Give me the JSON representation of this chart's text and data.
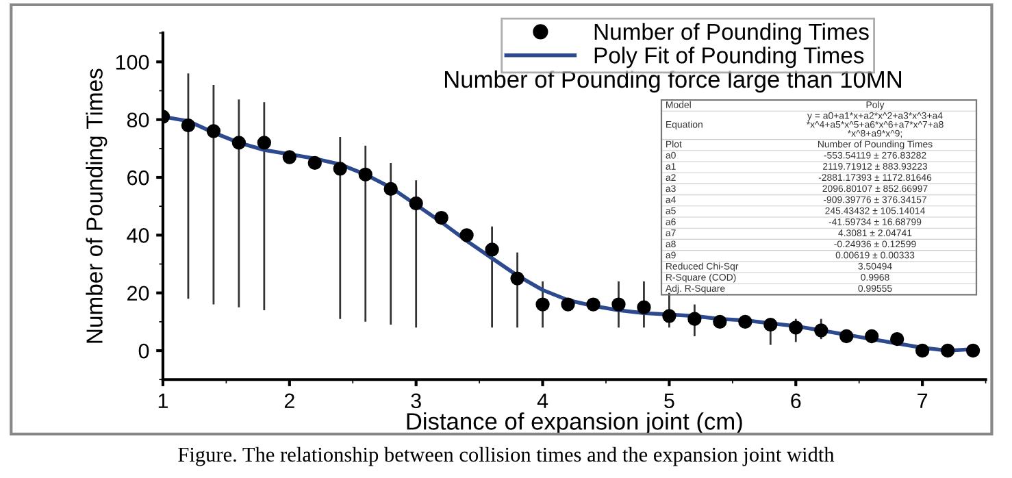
{
  "chart_data": {
    "type": "scatter",
    "title": "Number of Pounding force large than 10MN",
    "xlabel": "Distance of expansion joint (cm)",
    "ylabel": "Number of Pounding Times",
    "xlim": [
      1,
      7.5
    ],
    "ylim": [
      -10,
      110
    ],
    "xticks": [
      1,
      2,
      3,
      4,
      5,
      6,
      7
    ],
    "yticks": [
      0,
      20,
      40,
      60,
      80,
      100
    ],
    "grid": false,
    "legend": "top right",
    "series": [
      {
        "name": "Number of Pounding Times",
        "type": "scatter",
        "color": "#000000",
        "marker": "circle",
        "x": [
          1,
          1.2,
          1.4,
          1.6,
          1.8,
          2.0,
          2.2,
          2.4,
          2.6,
          2.8,
          3.0,
          3.2,
          3.4,
          3.6,
          3.8,
          4.0,
          4.2,
          4.4,
          4.6,
          4.8,
          5.0,
          5.2,
          5.4,
          5.6,
          5.8,
          6.0,
          6.2,
          6.4,
          6.6,
          6.8,
          7.0,
          7.2,
          7.4
        ],
        "values": [
          81,
          78,
          76,
          72,
          72,
          67,
          65,
          63,
          61,
          56,
          51,
          46,
          40,
          35,
          25,
          16,
          16,
          16,
          16,
          15,
          12,
          11,
          10,
          10,
          9,
          8,
          7,
          5,
          5,
          4,
          0,
          0,
          0
        ],
        "errors": [
          null,
          [
            18,
            96
          ],
          [
            16,
            92
          ],
          [
            15,
            87
          ],
          [
            14,
            86
          ],
          null,
          null,
          [
            11,
            74
          ],
          [
            10,
            71
          ],
          [
            9,
            65
          ],
          [
            8,
            59
          ],
          null,
          null,
          [
            8,
            43
          ],
          [
            8,
            34
          ],
          [
            8,
            24
          ],
          null,
          null,
          [
            8,
            24
          ],
          [
            8,
            24
          ],
          [
            8,
            20
          ],
          [
            5,
            16
          ],
          null,
          null,
          [
            2,
            10
          ],
          [
            3,
            11
          ],
          [
            4,
            11
          ],
          null,
          null,
          null,
          null,
          null,
          null
        ]
      },
      {
        "name": "Poly Fit of Pounding Times",
        "type": "line",
        "color": "#2e4a8e",
        "marker": "none",
        "line_style": "solid",
        "x": [
          1,
          1.2,
          1.4,
          1.6,
          1.8,
          2.0,
          2.2,
          2.4,
          2.6,
          2.8,
          3.0,
          3.2,
          3.4,
          3.6,
          3.8,
          4.0,
          4.2,
          4.4,
          4.6,
          4.8,
          5.0,
          5.2,
          5.4,
          5.6,
          5.8,
          6.0,
          6.2,
          6.4,
          6.6,
          6.8,
          7.0,
          7.2,
          7.4
        ],
        "values": [
          81,
          79.5,
          75.5,
          72,
          69.5,
          68,
          66.5,
          64.5,
          61,
          56.5,
          50.5,
          44.5,
          38,
          32,
          26,
          21,
          17.5,
          15.5,
          14,
          13,
          12.5,
          12,
          11,
          10.5,
          9.5,
          8.5,
          7,
          5.5,
          4,
          2.5,
          1,
          0,
          0.5
        ]
      }
    ],
    "annotations": [
      "Model",
      "Poly",
      "Equation",
      "y = a0+a1*x+a2*x^2+a3*x^3+a4*x^4+a5*x^5+a6*x^6+a7*x^7+a8*x^8+a9*x^9;",
      "Plot",
      "Number of Pounding Times",
      "a0",
      "-553.54119 ± 276.83282",
      "a1",
      "2119.71912 ± 883.93223",
      "a2",
      "-2881.17393 ± 1172.81646",
      "a3",
      "2096.80107 ± 852.66997",
      "a4",
      "-909.39776 ± 376.34157",
      "a5",
      "245.43432 ± 105.14014",
      "a6",
      "-41.59734 ± 16.68799",
      "a7",
      "4.3081 ± 2.04741",
      "a8",
      "-0.24936 ± 0.12599",
      "a9",
      "0.00619 ± 0.00333",
      "Reduced Chi-Sqr",
      "3.50494",
      "R-Square (COD)",
      "0.9968",
      "Adj. R-Square",
      "0.99555",
      "Figure. The relationship between collision times and the expansion joint width"
    ]
  }
}
